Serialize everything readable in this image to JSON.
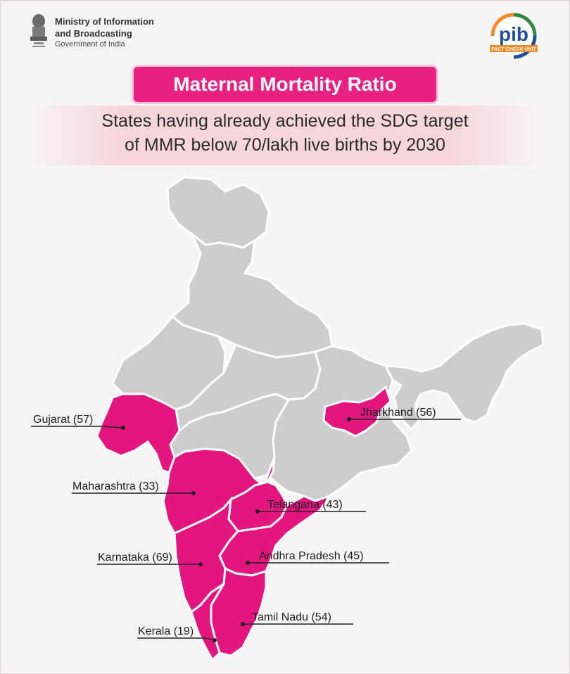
{
  "header": {
    "ministry_line1": "Ministry of Information",
    "ministry_line2": "and Broadcasting",
    "ministry_line3": "Government of India",
    "logo_text": "pib",
    "logo_subtext": "FACT CHECK UNIT",
    "emblem_icon": "national-emblem-icon"
  },
  "title": "Maternal Mortality Ratio",
  "subtitle_line1": "States having already achieved the SDG target",
  "subtitle_line2": "of MMR below 70/lakh live births by 2030",
  "colors": {
    "accent": "#e8207f",
    "highlight_state": "#e3157f",
    "other_state": "#cdcdcd",
    "border": "#ffffff"
  },
  "states": [
    {
      "name": "Gujarat",
      "label": "Gujarat (57)",
      "mmr": 57
    },
    {
      "name": "Jharkhand",
      "label": "Jharkhand (56)",
      "mmr": 56
    },
    {
      "name": "Maharashtra",
      "label": "Maharashtra (33)",
      "mmr": 33
    },
    {
      "name": "Telangana",
      "label": "Telangana (43)",
      "mmr": 43
    },
    {
      "name": "Karnataka",
      "label": "Karnataka (69)",
      "mmr": 69
    },
    {
      "name": "Andhra Pradesh",
      "label": "Andhra Pradesh (45)",
      "mmr": 45
    },
    {
      "name": "Tamil Nadu",
      "label": "Tamil Nadu (54)",
      "mmr": 54
    },
    {
      "name": "Kerala",
      "label": "Kerala (19)",
      "mmr": 19
    }
  ]
}
